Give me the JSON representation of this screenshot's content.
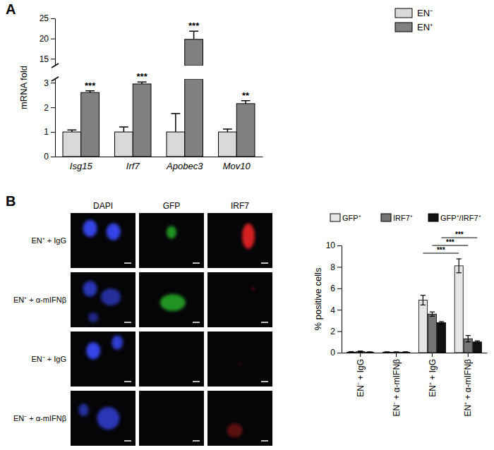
{
  "chart_data": [
    {
      "type": "bar",
      "ylabel": "mRNA fold",
      "categories": [
        "Isg15",
        "Irf7",
        "Apobec3",
        "Mov10"
      ],
      "series": [
        {
          "name": "EN⁻",
          "color": "#d9d9d9",
          "values": [
            1,
            1,
            1,
            1
          ],
          "errors": [
            0.08,
            0.2,
            0.75,
            0.12
          ]
        },
        {
          "name": "EN⁺",
          "color": "#808080",
          "values": [
            2.6,
            2.95,
            19.8,
            2.15
          ],
          "errors": [
            0.07,
            0.08,
            2.0,
            0.12
          ]
        }
      ],
      "ylim": [
        0,
        25
      ],
      "ybreak": [
        3.15,
        13.3
      ],
      "yticks": [
        0,
        1,
        2,
        3,
        15,
        20,
        25
      ],
      "annotations": [
        "***",
        "***",
        "***",
        "**"
      ],
      "legend": "top-right"
    },
    {
      "type": "bar",
      "ylabel": "% positive cells",
      "categories": [
        "EN⁻ + IgG",
        "EN⁻ + α-mIFNβ",
        "EN⁺ + IgG",
        "EN⁺ + α-mIFNβ"
      ],
      "series": [
        {
          "name": "GFP⁺",
          "color": "#e6e6e6",
          "values": [
            0.05,
            0.05,
            4.9,
            8.1
          ],
          "errors": [
            0.05,
            0.03,
            0.45,
            0.65
          ]
        },
        {
          "name": "IRF7⁺",
          "color": "#737373",
          "values": [
            0.1,
            0.05,
            3.6,
            1.3
          ],
          "errors": [
            0.05,
            0.03,
            0.2,
            0.3
          ]
        },
        {
          "name": "GFP⁺/IRF7⁺",
          "color": "#111111",
          "values": [
            0.05,
            0.05,
            2.8,
            1.0
          ],
          "errors": [
            0.03,
            0.03,
            0.1,
            0.1
          ]
        }
      ],
      "ylim": [
        0,
        10
      ],
      "yticks": [
        0,
        2,
        4,
        6,
        8,
        10
      ],
      "comparisons": [
        {
          "series": 0,
          "from": 2,
          "to": 3,
          "label": "***"
        },
        {
          "series": 1,
          "from": 2,
          "to": 3,
          "label": "***"
        },
        {
          "series": 2,
          "from": 2,
          "to": 3,
          "label": "***"
        }
      ],
      "legend": "top"
    }
  ],
  "figure": {
    "panel_labels": [
      "A",
      "B"
    ],
    "image_columns": [
      "DAPI",
      "GFP",
      "IRF7"
    ],
    "image_rows": [
      "EN⁺ + IgG",
      "EN⁺ + α-mIFNβ",
      "EN⁻ + IgG",
      "EN⁻ + α-mIFNβ"
    ]
  }
}
